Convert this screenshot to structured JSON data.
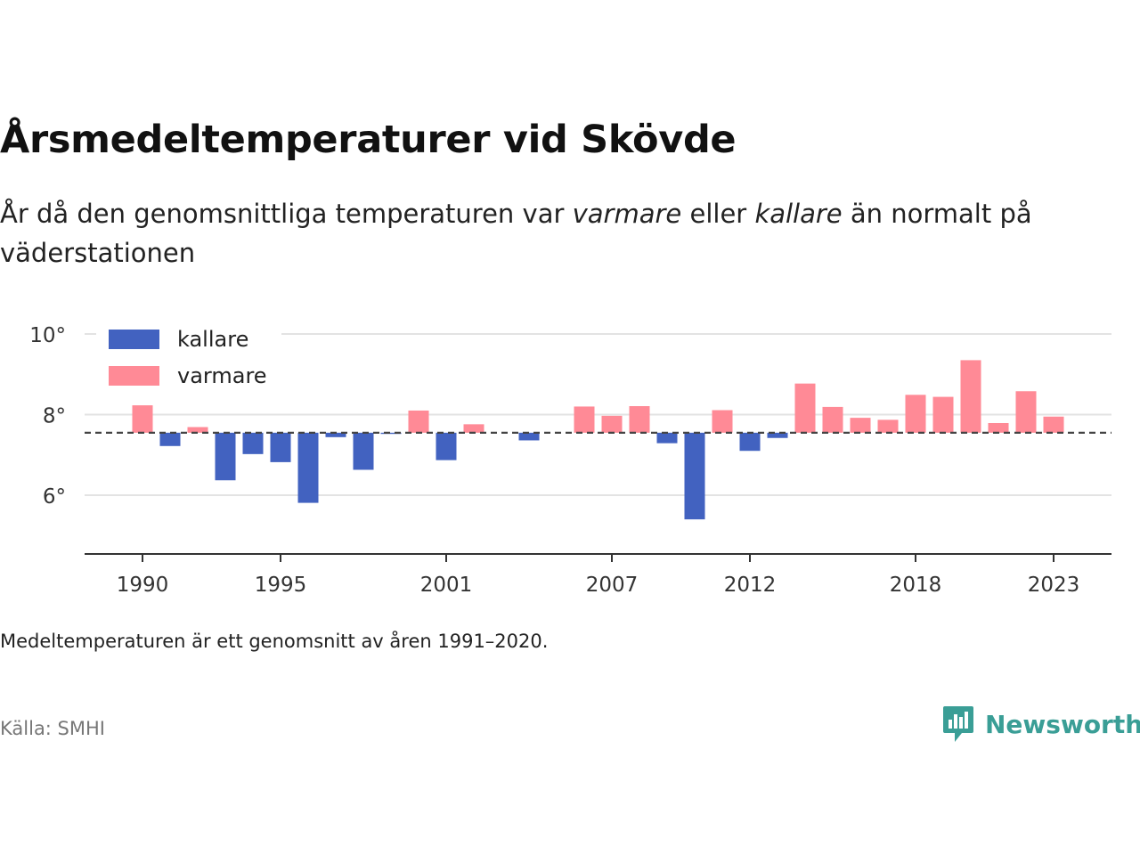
{
  "header": {
    "title": "Årsmedeltemperaturer vid Skövde",
    "subtitle_pre": "År då den genomsnittliga temperaturen var ",
    "subtitle_em1": "varmare",
    "subtitle_mid": " eller ",
    "subtitle_em2": "kallare",
    "subtitle_post": " än normalt på väderstationen"
  },
  "chart_data": {
    "type": "bar",
    "baseline": 7.55,
    "ylim": [
      4.6,
      10.2
    ],
    "y_ticks": [
      6,
      8,
      10
    ],
    "y_tick_labels": [
      "6°",
      "8°",
      "10°"
    ],
    "x_ticks": [
      1990,
      1995,
      2001,
      2007,
      2012,
      2018,
      2023
    ],
    "x_tick_labels": [
      "1990",
      "1995",
      "2001",
      "2007",
      "2012",
      "2018",
      "2023"
    ],
    "grid": true,
    "legend_position": "top-left",
    "series": [
      {
        "name": "kallare",
        "color": "#4262c0"
      },
      {
        "name": "varmare",
        "color": "#ff8a96"
      }
    ],
    "data": [
      {
        "year": 1990,
        "value": 8.23
      },
      {
        "year": 1991,
        "value": 7.22
      },
      {
        "year": 1992,
        "value": 7.69
      },
      {
        "year": 1993,
        "value": 6.37
      },
      {
        "year": 1994,
        "value": 7.02
      },
      {
        "year": 1995,
        "value": 6.82
      },
      {
        "year": 1996,
        "value": 5.81
      },
      {
        "year": 1997,
        "value": 7.44
      },
      {
        "year": 1998,
        "value": 6.63
      },
      {
        "year": 1999,
        "value": 7.52
      },
      {
        "year": 2000,
        "value": 8.1
      },
      {
        "year": 2001,
        "value": 6.87
      },
      {
        "year": 2002,
        "value": 7.76
      },
      {
        "year": 2003,
        "value": 7.55
      },
      {
        "year": 2004,
        "value": 7.36
      },
      {
        "year": 2005,
        "value": 7.55
      },
      {
        "year": 2006,
        "value": 8.2
      },
      {
        "year": 2007,
        "value": 7.97
      },
      {
        "year": 2008,
        "value": 8.21
      },
      {
        "year": 2009,
        "value": 7.29
      },
      {
        "year": 2010,
        "value": 5.4
      },
      {
        "year": 2011,
        "value": 8.11
      },
      {
        "year": 2012,
        "value": 7.1
      },
      {
        "year": 2013,
        "value": 7.42
      },
      {
        "year": 2014,
        "value": 8.77
      },
      {
        "year": 2015,
        "value": 8.19
      },
      {
        "year": 2016,
        "value": 7.92
      },
      {
        "year": 2017,
        "value": 7.87
      },
      {
        "year": 2018,
        "value": 8.49
      },
      {
        "year": 2019,
        "value": 8.44
      },
      {
        "year": 2020,
        "value": 9.35
      },
      {
        "year": 2021,
        "value": 7.79
      },
      {
        "year": 2022,
        "value": 8.58
      },
      {
        "year": 2023,
        "value": 7.95
      }
    ]
  },
  "footer": {
    "note": "Medeltemperaturen är ett genomsnitt av åren 1991–2020.",
    "source": "Källa: SMHI",
    "brand": "Newsworthy",
    "brand_color": "#3a9e96"
  }
}
